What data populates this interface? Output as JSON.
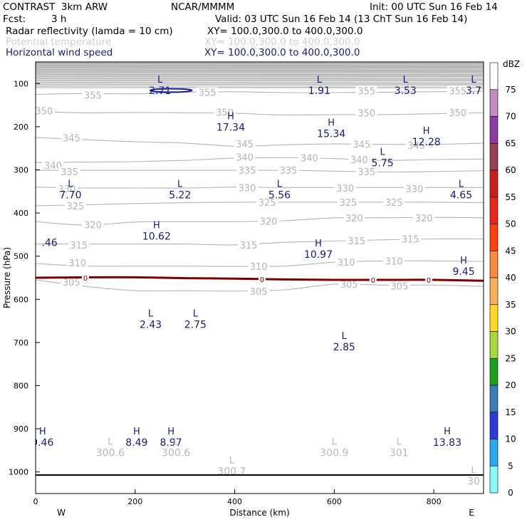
{
  "header": {
    "model": "CONTRAST  3km ARW",
    "source": "NCAR/MMMM",
    "init": "Init: 00 UTC Sun 16 Feb 14",
    "fcst_label": "Fcst:",
    "fcst_value": "3 h",
    "valid": "Valid: 03 UTC Sun 16 Feb 14 (13 ChT Sun 16 Feb 14)",
    "field1_name": "Radar reflectivity (lamda = 10 cm)",
    "field1_xy": "XY= 100.0,300.0 to 400.0,300.0",
    "field2_name": "Potential temperature",
    "field2_xy": "XY= 100.0,300.0 to 400.0,300.0",
    "field3_name": "Horizontal wind speed",
    "field3_xy": "XY= 100.0,300.0 to 400.0,300.0"
  },
  "colors": {
    "theta_contours": "#b4b4b4",
    "wind_labels": "#1a1a78",
    "freezing_line": "#7a0000",
    "reflectivity_contour": "#1a1a8a",
    "axis": "#000000"
  },
  "chart_data": {
    "type": "cross-section",
    "xlabel": "Distance (km)",
    "ylabel": "Pressure (hPa)",
    "xlim": [
      0,
      900
    ],
    "ylim": [
      1050,
      50
    ],
    "xticks": [
      0,
      200,
      400,
      600,
      800
    ],
    "yticks": [
      100,
      200,
      300,
      400,
      500,
      600,
      700,
      800,
      900,
      1000
    ],
    "x_end_labels": {
      "left": "W",
      "right": "E"
    },
    "colorbar": {
      "unit": "dBZ",
      "ticks": [
        75,
        70,
        65,
        60,
        55,
        50,
        45,
        40,
        35,
        30,
        25,
        20,
        15,
        10,
        5,
        0
      ],
      "colors": [
        "#c08dc2",
        "#8c3ca2",
        "#9a3f56",
        "#c8201e",
        "#e8281e",
        "#ff4010",
        "#fa8a40",
        "#f8b05a",
        "#ffd82e",
        "#a8d83c",
        "#1ca01c",
        "#3a7cb8",
        "#2e3ad8",
        "#2aa8f0",
        "#88f8f8",
        "#ffffff"
      ]
    },
    "theta_contours": [
      {
        "value": 355,
        "points": [
          [
            0,
            125
          ],
          [
            100,
            123
          ],
          [
            200,
            124
          ],
          [
            300,
            120
          ],
          [
            400,
            119
          ],
          [
            500,
            121
          ],
          [
            600,
            121
          ],
          [
            700,
            120
          ],
          [
            800,
            119
          ],
          [
            900,
            118
          ]
        ],
        "labels": [
          [
            115,
            127,
            "355"
          ],
          [
            345,
            120,
            "355"
          ],
          [
            665,
            117,
            "355"
          ],
          [
            848,
            117,
            "355"
          ]
        ]
      },
      {
        "value": 350,
        "points": [
          [
            0,
            165
          ],
          [
            100,
            168
          ],
          [
            200,
            167
          ],
          [
            300,
            168
          ],
          [
            400,
            169
          ],
          [
            500,
            173
          ],
          [
            600,
            172
          ],
          [
            700,
            172
          ],
          [
            800,
            170
          ],
          [
            900,
            168
          ]
        ],
        "labels": [
          [
            17,
            163,
            "350"
          ],
          [
            380,
            166,
            "350"
          ],
          [
            665,
            168,
            "350"
          ],
          [
            848,
            167,
            "350"
          ]
        ]
      },
      {
        "value": 345,
        "points": [
          [
            0,
            225
          ],
          [
            100,
            230
          ],
          [
            200,
            235
          ],
          [
            300,
            238
          ],
          [
            400,
            245
          ],
          [
            500,
            242
          ],
          [
            600,
            240
          ],
          [
            700,
            241
          ],
          [
            800,
            241
          ],
          [
            900,
            238
          ]
        ],
        "labels": [
          [
            72,
            226,
            "345"
          ],
          [
            420,
            240,
            "345"
          ],
          [
            655,
            241,
            "345"
          ],
          [
            765,
            243,
            "345"
          ]
        ]
      },
      {
        "value": 340,
        "points": [
          [
            0,
            283
          ],
          [
            100,
            282
          ],
          [
            200,
            281
          ],
          [
            300,
            278
          ],
          [
            400,
            273
          ],
          [
            500,
            272
          ],
          [
            600,
            274
          ],
          [
            700,
            278
          ],
          [
            800,
            276
          ],
          [
            900,
            275
          ]
        ],
        "labels": [
          [
            35,
            289,
            "340"
          ],
          [
            420,
            270,
            "340"
          ],
          [
            550,
            272,
            "340"
          ],
          [
            650,
            276,
            "340"
          ]
        ]
      },
      {
        "value": 335,
        "points": [
          [
            0,
            301
          ],
          [
            100,
            301
          ],
          [
            200,
            301
          ],
          [
            300,
            301
          ],
          [
            400,
            301
          ],
          [
            500,
            301
          ],
          [
            600,
            303
          ],
          [
            700,
            305
          ],
          [
            800,
            304
          ],
          [
            900,
            302
          ]
        ],
        "labels": [
          [
            68,
            304,
            "335"
          ],
          [
            425,
            301,
            "335"
          ],
          [
            508,
            301,
            "335"
          ],
          [
            665,
            304,
            "335"
          ]
        ]
      },
      {
        "value": 330,
        "points": [
          [
            0,
            340
          ],
          [
            100,
            342
          ],
          [
            200,
            342
          ],
          [
            300,
            342
          ],
          [
            400,
            340
          ],
          [
            500,
            341
          ],
          [
            600,
            341
          ],
          [
            700,
            341
          ],
          [
            800,
            341
          ],
          [
            900,
            341
          ]
        ],
        "labels": [
          [
            63,
            344,
            "330"
          ],
          [
            425,
            341,
            "330"
          ],
          [
            622,
            342,
            "330"
          ],
          [
            761,
            344,
            "330"
          ]
        ]
      },
      {
        "value": 325,
        "points": [
          [
            0,
            383
          ],
          [
            100,
            381
          ],
          [
            200,
            378
          ],
          [
            300,
            376
          ],
          [
            400,
            375
          ],
          [
            500,
            375
          ],
          [
            600,
            375
          ],
          [
            700,
            375
          ],
          [
            800,
            375
          ],
          [
            900,
            376
          ]
        ],
        "labels": [
          [
            80,
            383,
            "325"
          ],
          [
            465,
            375,
            "325"
          ],
          [
            628,
            375,
            "325"
          ],
          [
            720,
            375,
            "325"
          ]
        ]
      },
      {
        "value": 320,
        "points": [
          [
            0,
            420
          ],
          [
            100,
            428
          ],
          [
            200,
            421
          ],
          [
            300,
            420
          ],
          [
            400,
            420
          ],
          [
            500,
            418
          ],
          [
            600,
            411
          ],
          [
            700,
            411
          ],
          [
            800,
            410
          ],
          [
            900,
            411
          ]
        ],
        "labels": [
          [
            115,
            427,
            "320"
          ],
          [
            468,
            419,
            "320"
          ],
          [
            640,
            411,
            "320"
          ],
          [
            780,
            411,
            "320"
          ]
        ]
      },
      {
        "value": 315,
        "points": [
          [
            0,
            472
          ],
          [
            100,
            472
          ],
          [
            200,
            472
          ],
          [
            300,
            472
          ],
          [
            400,
            474
          ],
          [
            500,
            468
          ],
          [
            600,
            465
          ],
          [
            700,
            462
          ],
          [
            800,
            460
          ],
          [
            900,
            460
          ]
        ],
        "labels": [
          [
            87,
            474,
            "315"
          ],
          [
            428,
            474,
            "315"
          ],
          [
            645,
            464,
            "315"
          ],
          [
            753,
            460,
            "315"
          ]
        ]
      },
      {
        "value": 310,
        "points": [
          [
            0,
            517
          ],
          [
            100,
            523
          ],
          [
            200,
            523
          ],
          [
            300,
            523
          ],
          [
            400,
            524
          ],
          [
            500,
            523
          ],
          [
            600,
            514
          ],
          [
            700,
            511
          ],
          [
            800,
            511
          ],
          [
            900,
            512
          ]
        ],
        "labels": [
          [
            84,
            515,
            "310"
          ],
          [
            448,
            524,
            "310"
          ],
          [
            624,
            514,
            "310"
          ],
          [
            720,
            511,
            "310"
          ]
        ]
      },
      {
        "value": 305,
        "points": [
          [
            0,
            555
          ],
          [
            100,
            570
          ],
          [
            200,
            580
          ],
          [
            300,
            580
          ],
          [
            400,
            581
          ],
          [
            500,
            578
          ],
          [
            600,
            565
          ],
          [
            700,
            567
          ],
          [
            800,
            567
          ],
          [
            900,
            570
          ]
        ],
        "labels": [
          [
            72,
            560,
            "305"
          ],
          [
            448,
            581,
            "305"
          ],
          [
            630,
            565,
            "305"
          ],
          [
            731,
            569,
            "305"
          ]
        ]
      }
    ],
    "freezing_line": {
      "label": "0",
      "points": [
        [
          0,
          550
        ],
        [
          100,
          549
        ],
        [
          200,
          549
        ],
        [
          300,
          551
        ],
        [
          400,
          552
        ],
        [
          500,
          554
        ],
        [
          600,
          555
        ],
        [
          700,
          555
        ],
        [
          800,
          555
        ],
        [
          900,
          557
        ]
      ],
      "labels": [
        [
          100,
          550,
          "0"
        ],
        [
          455,
          553,
          "0"
        ],
        [
          678,
          555,
          "0"
        ],
        [
          790,
          555,
          "0"
        ]
      ]
    },
    "reflectivity_contour": {
      "cx": 272,
      "cy": 116,
      "rx": 42,
      "ry": 4
    },
    "surface_line_p": 1007,
    "wind_extrema": [
      {
        "type": "L",
        "value": "2.71",
        "x": 250,
        "p": 98,
        "grey": false
      },
      {
        "type": "L",
        "value": "1.91",
        "x": 570,
        "p": 98,
        "grey": false
      },
      {
        "type": "L",
        "value": "3.53",
        "x": 743,
        "p": 98,
        "grey": false
      },
      {
        "type": "L",
        "value": "3.7",
        "x": 880,
        "p": 98,
        "grey": false
      },
      {
        "type": "H",
        "value": "17.34",
        "x": 392,
        "p": 183,
        "grey": false
      },
      {
        "type": "H",
        "value": "15.34",
        "x": 594,
        "p": 198,
        "grey": false
      },
      {
        "type": "H",
        "value": "12.28",
        "x": 785,
        "p": 217,
        "grey": false
      },
      {
        "type": "L",
        "value": "5.75",
        "x": 697,
        "p": 265,
        "grey": false
      },
      {
        "type": "L",
        "value": "7.70",
        "x": 70,
        "p": 340,
        "grey": false
      },
      {
        "type": "L",
        "value": "5.22",
        "x": 290,
        "p": 340,
        "grey": false
      },
      {
        "type": "L",
        "value": "5.56",
        "x": 490,
        "p": 340,
        "grey": false
      },
      {
        "type": "L",
        "value": "4.65",
        "x": 855,
        "p": 340,
        "grey": false
      },
      {
        "type": "H",
        "value": "10.62",
        "x": 243,
        "p": 435,
        "grey": false
      },
      {
        "type": "",
        "value": ".46",
        "x": 28,
        "p": 450,
        "grey": false
      },
      {
        "type": "H",
        "value": "10.97",
        "x": 568,
        "p": 477,
        "grey": false
      },
      {
        "type": "H",
        "value": "9.45",
        "x": 860,
        "p": 517,
        "grey": false
      },
      {
        "type": "L",
        "value": "2.43",
        "x": 231,
        "p": 640,
        "grey": false
      },
      {
        "type": "L",
        "value": "2.75",
        "x": 321,
        "p": 640,
        "grey": false
      },
      {
        "type": "L",
        "value": "2.85",
        "x": 620,
        "p": 692,
        "grey": false
      },
      {
        "type": "H",
        "value": "9.46",
        "x": 14,
        "p": 913,
        "grey": false
      },
      {
        "type": "H",
        "value": "8.49",
        "x": 203,
        "p": 913,
        "grey": false
      },
      {
        "type": "H",
        "value": "8.97",
        "x": 272,
        "p": 913,
        "grey": false
      },
      {
        "type": "H",
        "value": "13.83",
        "x": 827,
        "p": 913,
        "grey": false
      },
      {
        "type": "L",
        "value": "300.6",
        "x": 150,
        "p": 937,
        "grey": true
      },
      {
        "type": "L",
        "value": "300.6",
        "x": 282,
        "p": 937,
        "grey": true
      },
      {
        "type": "L",
        "value": "300.9",
        "x": 600,
        "p": 937,
        "grey": true
      },
      {
        "type": "L",
        "value": "301",
        "x": 730,
        "p": 937,
        "grey": true
      },
      {
        "type": "L",
        "value": "300.7",
        "x": 394,
        "p": 980,
        "grey": true
      },
      {
        "type": "L",
        "value": "30",
        "x": 880,
        "p": 1003,
        "grey": true
      }
    ]
  }
}
